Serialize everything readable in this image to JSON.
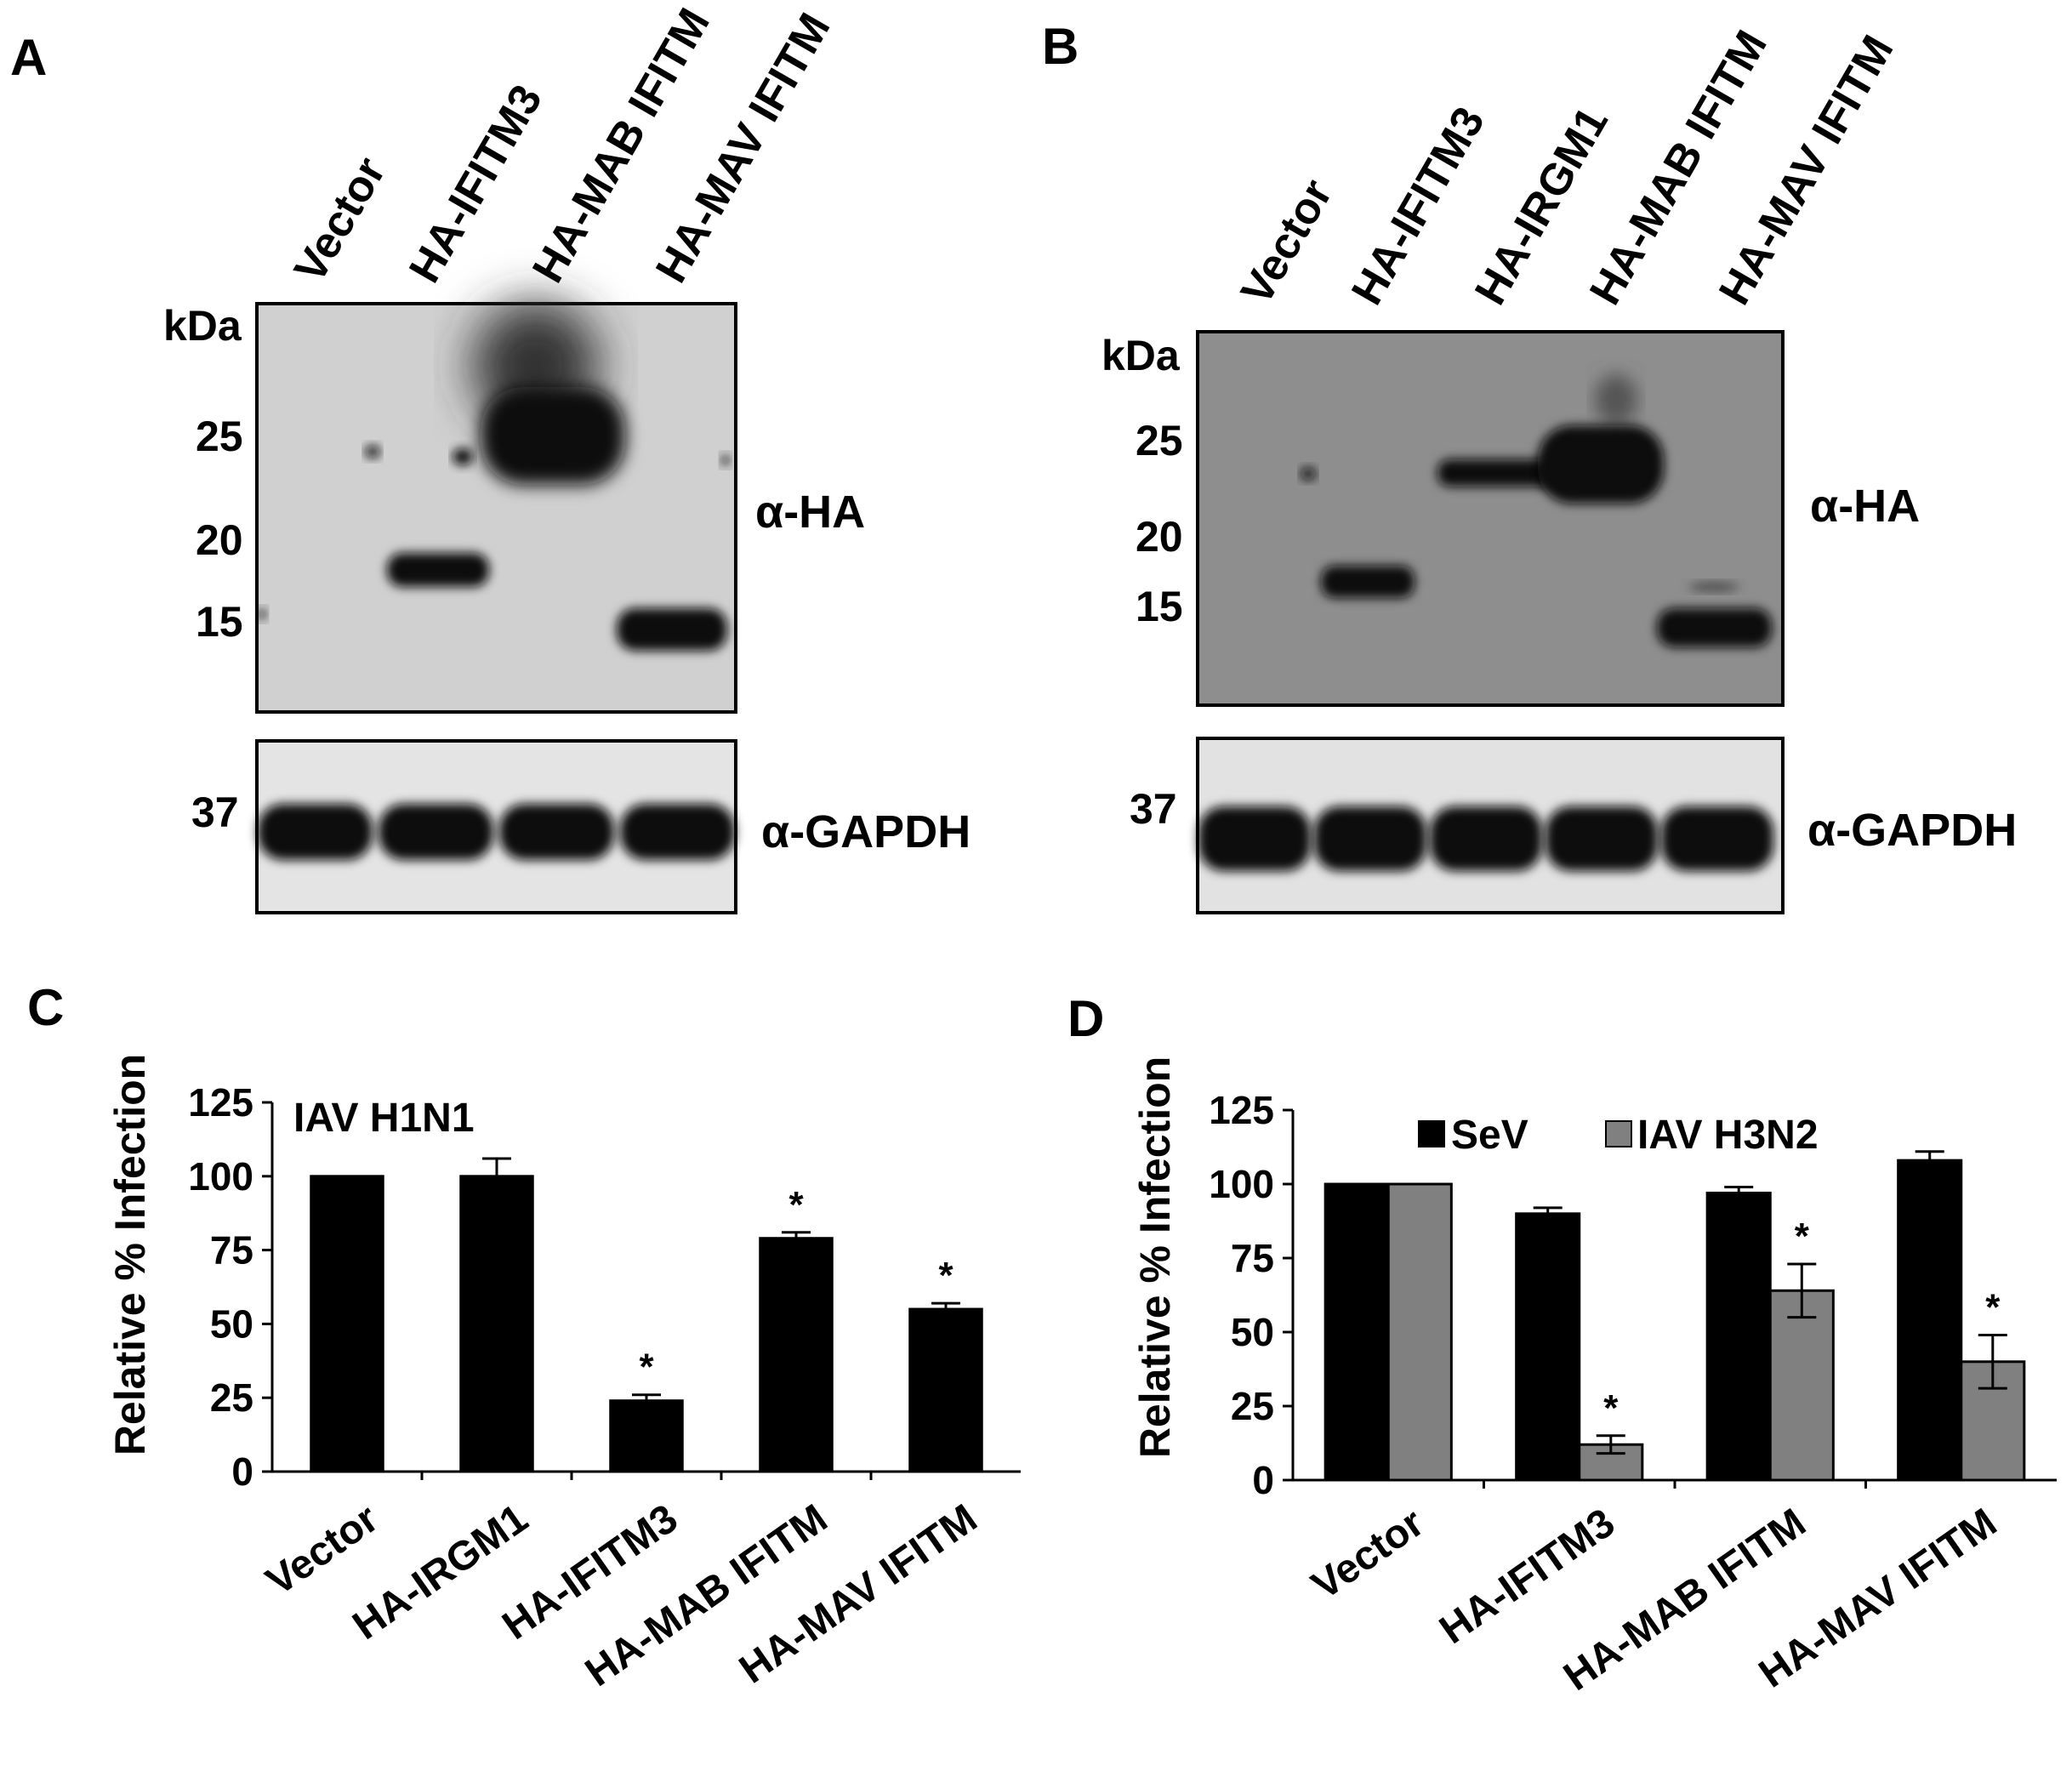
{
  "panels": {
    "A": {
      "letter": "A",
      "lanes": [
        "Vector",
        "HA-IFITM3",
        "HA-MAB IFITM",
        "HA-MAV IFITM"
      ],
      "unit": "kDa",
      "markers": [
        "25",
        "20",
        "15"
      ],
      "gapdh_marker": "37",
      "antibody_top": "α-HA",
      "antibody_bottom": "α-GAPDH"
    },
    "B": {
      "letter": "B",
      "lanes": [
        "Vector",
        "HA-IFITM3",
        "HA-IRGM1",
        "HA-MAB IFITM",
        "HA-MAV IFITM"
      ],
      "unit": "kDa",
      "markers": [
        "25",
        "20",
        "15"
      ],
      "gapdh_marker": "37",
      "antibody_top": "α-HA",
      "antibody_bottom": "α-GAPDH"
    },
    "C": {
      "letter": "C",
      "annotation": "IAV H1N1"
    },
    "D": {
      "letter": "D"
    }
  },
  "chart_data": [
    {
      "panel": "C",
      "type": "bar",
      "ylabel": "Relative % Infection",
      "ylim": [
        0,
        125
      ],
      "yticks": [
        "0",
        "25",
        "50",
        "75",
        "100",
        "125"
      ],
      "categories": [
        "Vector",
        "HA-IRGM1",
        "HA-IFITM3",
        "HA-MAB IFITM",
        "HA-MAV IFITM"
      ],
      "series": [
        {
          "values": [
            100,
            100,
            24,
            79,
            55
          ],
          "errors": [
            0,
            6,
            2,
            2,
            2
          ],
          "color": "#000000"
        }
      ],
      "significance": [
        "",
        "",
        "*",
        "*",
        "*"
      ]
    },
    {
      "panel": "D",
      "type": "bar",
      "ylabel": "Relative % Infection",
      "ylim": [
        0,
        125
      ],
      "yticks": [
        "0",
        "25",
        "50",
        "75",
        "100",
        "125"
      ],
      "categories": [
        "Vector",
        "HA-IFITM3",
        "HA-MAB IFITM",
        "HA-MAV IFITM"
      ],
      "legend": "top",
      "series": [
        {
          "name": "SeV",
          "values": [
            100,
            90,
            97,
            108
          ],
          "errors": [
            0,
            2,
            2,
            3
          ],
          "color": "#000000",
          "significance": [
            "",
            "",
            "",
            ""
          ]
        },
        {
          "name": "IAV H3N2",
          "values": [
            100,
            12,
            64,
            40
          ],
          "errors": [
            0,
            3,
            9,
            9
          ],
          "color": "#808080",
          "significance": [
            "",
            "*",
            "*",
            "*"
          ]
        }
      ]
    }
  ]
}
